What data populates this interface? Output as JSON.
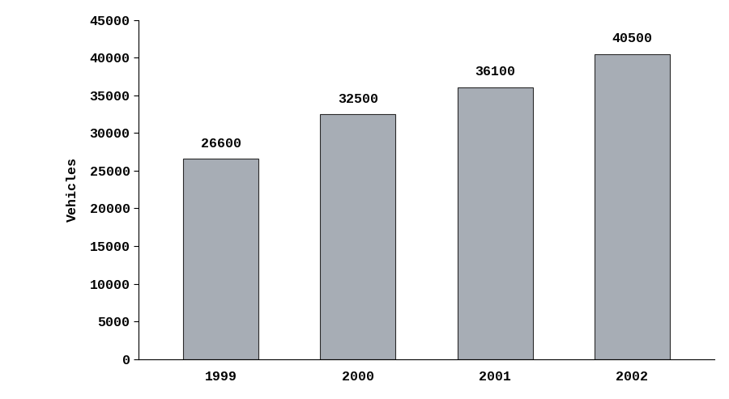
{
  "chart_data": {
    "type": "bar",
    "y_label": "Vehicles",
    "categories": [
      "1999",
      "2000",
      "2001",
      "2002"
    ],
    "values": [
      26600,
      32500,
      36100,
      40500
    ],
    "color": "#a7adb5",
    "ylim": [
      0,
      45000
    ],
    "yticks": [
      0,
      5000,
      10000,
      15000,
      20000,
      25000,
      30000,
      35000,
      40000,
      45000
    ],
    "data_labels": true,
    "grid": false
  }
}
